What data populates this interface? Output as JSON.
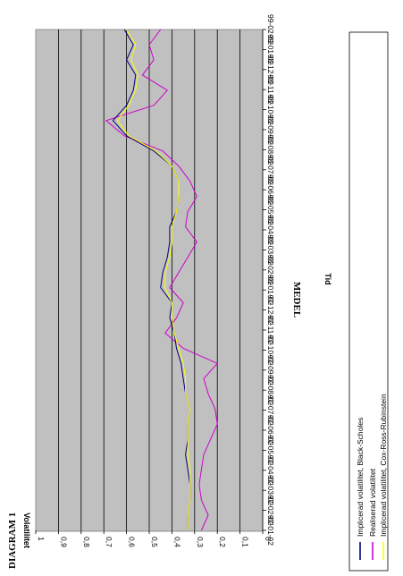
{
  "chart_data": {
    "type": "line",
    "orientation": "rotated-90-clockwise",
    "diagram_label": "DIAGRAM 1",
    "title": "MEDEL",
    "xlabel": "Tid",
    "ylabel": "Volatilitet",
    "ylim": [
      0,
      1
    ],
    "yticks": [
      "0",
      "0,1",
      "0,2",
      "0,3",
      "0,4",
      "0,5",
      "0,6",
      "0,7",
      "0,8",
      "0,9",
      "1"
    ],
    "xticks": [
      "97-01-02",
      "97-02-02",
      "97-03-02",
      "97-04-02",
      "97-05-02",
      "97-06-02",
      "97-07-02",
      "97-08-02",
      "97-09-02",
      "97-10-02",
      "97-11-02",
      "97-12-02",
      "98-01-02",
      "98-02-02",
      "98-03-02",
      "98-04-02",
      "98-05-02",
      "98-06-02",
      "98-07-02",
      "98-08-02",
      "98-09-02",
      "98-10-02",
      "98-11-02",
      "98-12-02",
      "99-01-02",
      "99-02-02"
    ],
    "grid": true,
    "plot_background": "#c0c0c0",
    "legend_position": "right",
    "series": [
      {
        "name": "Implicerad volatilitet, Black-Scholes",
        "color": "#000080",
        "values": [
          0.33,
          0.33,
          0.32,
          0.32,
          0.33,
          0.34,
          0.33,
          0.33,
          0.32,
          0.34,
          0.35,
          0.36,
          0.38,
          0.39,
          0.41,
          0.4,
          0.45,
          0.44,
          0.42,
          0.41,
          0.41,
          0.38,
          0.37,
          0.37,
          0.4,
          0.48,
          0.6,
          0.66,
          0.6,
          0.57,
          0.56,
          0.6,
          0.57,
          0.61
        ]
      },
      {
        "name": "Realiserad volatilitet",
        "color": "#cc00cc",
        "values": [
          0.27,
          0.24,
          0.27,
          0.28,
          0.27,
          0.26,
          0.23,
          0.2,
          0.21,
          0.24,
          0.26,
          0.2,
          0.35,
          0.43,
          0.38,
          0.35,
          0.41,
          0.37,
          0.33,
          0.29,
          0.34,
          0.33,
          0.29,
          0.32,
          0.37,
          0.44,
          0.61,
          0.69,
          0.48,
          0.42,
          0.53,
          0.48,
          0.5,
          0.45
        ]
      },
      {
        "name": "Implicerad volatilitet, Cox-Ross-Rubinstein",
        "color": "#ffff00",
        "values": [
          0.33,
          0.33,
          0.32,
          0.32,
          0.32,
          0.33,
          0.33,
          0.33,
          0.32,
          0.34,
          0.34,
          0.35,
          0.37,
          0.39,
          0.4,
          0.4,
          0.43,
          0.43,
          0.41,
          0.4,
          0.4,
          0.38,
          0.37,
          0.37,
          0.4,
          0.47,
          0.59,
          0.64,
          0.59,
          0.56,
          0.55,
          0.58,
          0.56,
          0.6
        ]
      }
    ]
  }
}
